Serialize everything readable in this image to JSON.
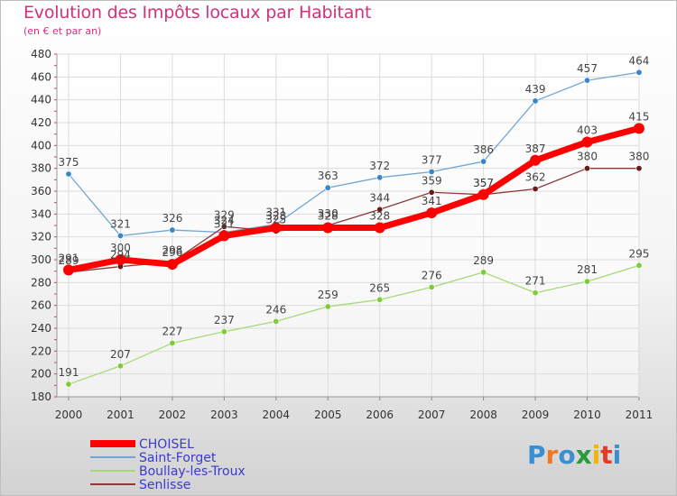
{
  "title": "Evolution des Impôts locaux par Habitant",
  "subtitle": "(en € et par an)",
  "logo": {
    "text": "Proxiti",
    "colors": [
      "#3a8fd0",
      "#f07820",
      "#3a8fd0",
      "#2a9a3a",
      "#f2b400",
      "#e53a2a",
      "#3a8fd0"
    ]
  },
  "chart_data": {
    "type": "line",
    "title": "Evolution des Impôts locaux par Habitant",
    "subtitle": "(en € et par an)",
    "xlabel": "",
    "ylabel": "",
    "x": [
      "2000",
      "2001",
      "2002",
      "2003",
      "2004",
      "2005",
      "2006",
      "2007",
      "2008",
      "2009",
      "2010",
      "2011"
    ],
    "ylim": [
      180,
      480
    ],
    "yticks": [
      180,
      200,
      220,
      240,
      260,
      280,
      300,
      320,
      340,
      360,
      380,
      400,
      420,
      440,
      460,
      480
    ],
    "grid": true,
    "legend_position": "bottom-left",
    "series": [
      {
        "name": "CHOISEL",
        "color": "#ff0000",
        "point_color": "#ff0000",
        "width": "thick",
        "values": [
          291,
          300,
          296,
          321,
          328,
          328,
          328,
          341,
          357,
          387,
          403,
          415
        ]
      },
      {
        "name": "Saint-Forget",
        "color": "#6fa6d6",
        "point_color": "#3c86c8",
        "width": "thin",
        "values": [
          375,
          321,
          326,
          324,
          331,
          363,
          372,
          377,
          386,
          439,
          457,
          464
        ]
      },
      {
        "name": "Boullay-les-Troux",
        "color": "#a6d977",
        "point_color": "#7fcc3a",
        "width": "thin",
        "values": [
          191,
          207,
          227,
          237,
          246,
          259,
          265,
          276,
          289,
          271,
          281,
          295
        ]
      },
      {
        "name": "Senlisse",
        "color": "#8c3a3a",
        "point_color": "#6b1a1a",
        "width": "thin",
        "values": [
          289,
          294,
          298,
          329,
          325,
          330,
          344,
          359,
          357,
          362,
          380,
          380
        ]
      }
    ]
  }
}
